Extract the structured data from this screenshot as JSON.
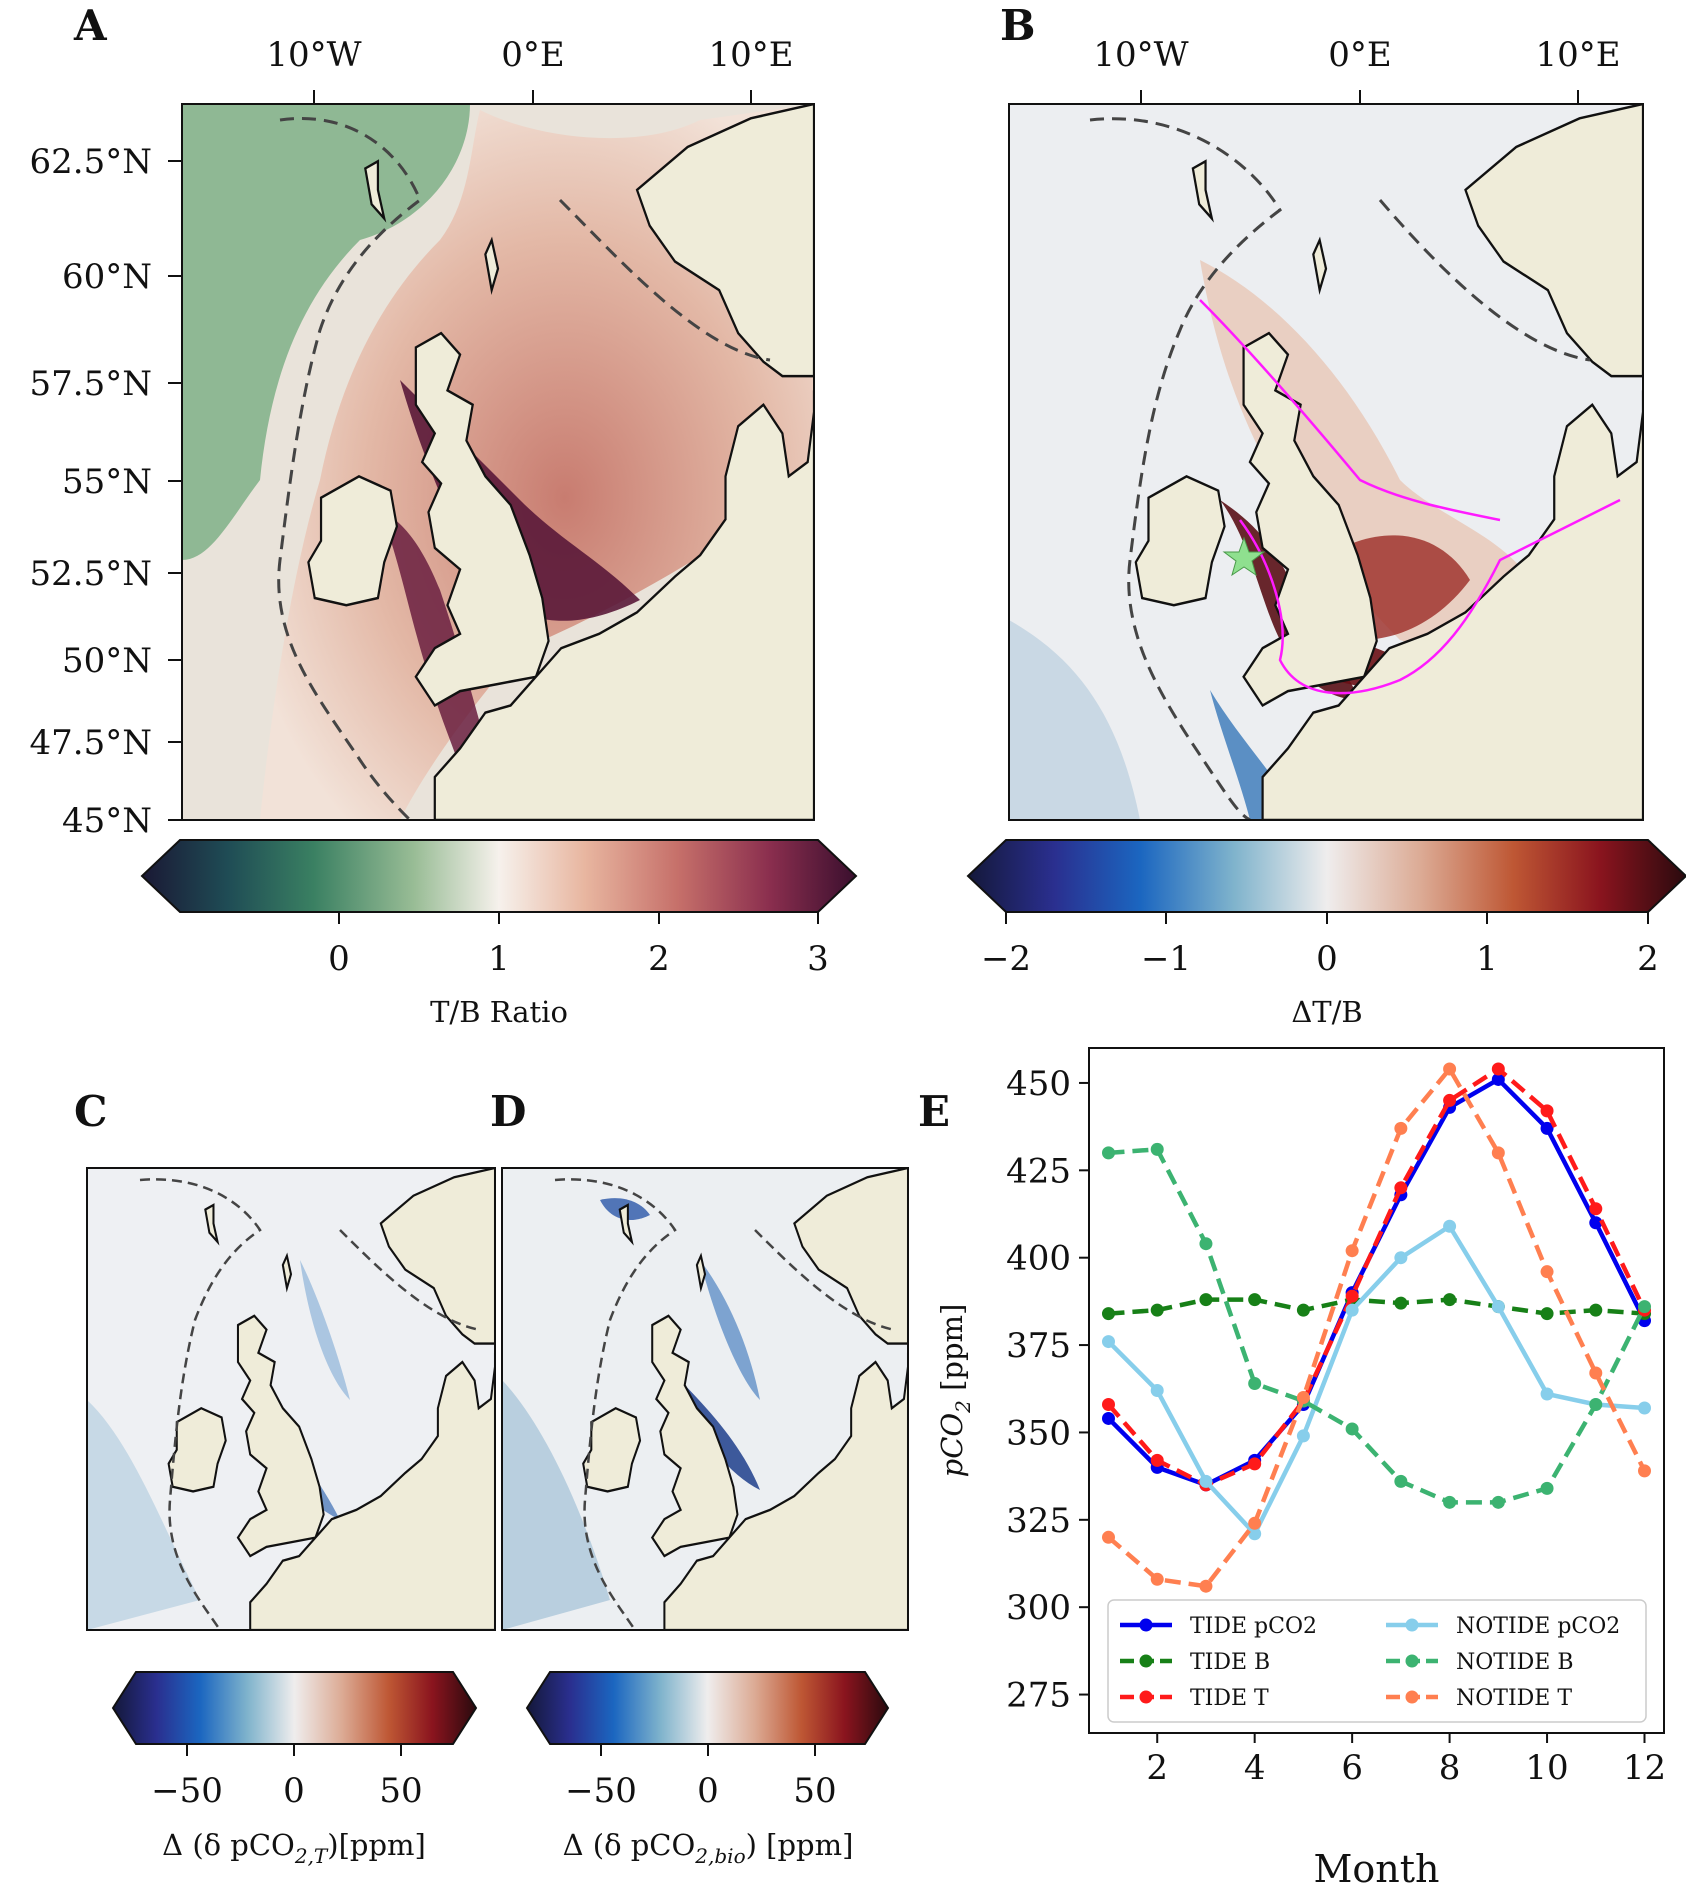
{
  "panels": {
    "A": {
      "letter": "A",
      "lon_ticks": [
        "10°W",
        "0°E",
        "10°E"
      ],
      "lat_ticks": [
        "62.5°N",
        "60°N",
        "57.5°N",
        "55°N",
        "52.5°N",
        "50°N",
        "47.5°N",
        "45°N"
      ],
      "colorbar_ticks": [
        "0",
        "1",
        "2",
        "3"
      ],
      "colorbar_label": "T/B Ratio"
    },
    "B": {
      "letter": "B",
      "lon_ticks": [
        "10°W",
        "0°E",
        "10°E"
      ],
      "colorbar_ticks": [
        "−2",
        "−1",
        "0",
        "1",
        "2"
      ],
      "colorbar_label": "ΔT/B"
    },
    "C": {
      "letter": "C",
      "colorbar_ticks": [
        "−50",
        "0",
        "50"
      ],
      "colorbar_label": "Δ (δ pCO",
      "colorbar_label_sub": "2,T",
      "colorbar_label_tail": ")[ppm]"
    },
    "D": {
      "letter": "D",
      "colorbar_ticks": [
        "−50",
        "0",
        "50"
      ],
      "colorbar_label": "Δ (δ pCO",
      "colorbar_label_sub": "2,bio",
      "colorbar_label_tail": ") [ppm]"
    },
    "E": {
      "letter": "E"
    }
  },
  "chart_data": [
    {
      "type": "heatmap",
      "panel": "A",
      "title": "",
      "colorbar_label": "T/B Ratio",
      "color_range": [
        -1,
        3
      ],
      "colorbar_ticks": [
        0,
        1,
        2,
        3
      ],
      "lon_range": [
        -16,
        13
      ],
      "lat_range": [
        45,
        64
      ],
      "lon_ticks": [
        -10,
        0,
        10
      ],
      "lat_ticks": [
        62.5,
        60,
        57.5,
        55,
        52.5,
        50,
        47.5,
        45
      ]
    },
    {
      "type": "heatmap",
      "panel": "B",
      "title": "",
      "colorbar_label": "ΔT/B",
      "color_range": [
        -2,
        2
      ],
      "colorbar_ticks": [
        -2,
        -1,
        0,
        1,
        2
      ],
      "lon_range": [
        -16,
        13
      ],
      "lat_range": [
        45,
        64
      ],
      "lon_ticks": [
        -10,
        0,
        10
      ],
      "marker": "green star near 5°W, 53°N"
    },
    {
      "type": "heatmap",
      "panel": "C",
      "colorbar_label": "Δ (δ pCO2,T)[ppm]",
      "color_range": [
        -80,
        80
      ],
      "colorbar_ticks": [
        -50,
        0,
        50
      ]
    },
    {
      "type": "heatmap",
      "panel": "D",
      "colorbar_label": "Δ (δ pCO2,bio) [ppm]",
      "color_range": [
        -80,
        80
      ],
      "colorbar_ticks": [
        -50,
        0,
        50
      ]
    },
    {
      "type": "line",
      "panel": "E",
      "title": "",
      "xlabel": "Month",
      "ylabel": "pCO",
      "ylabel_sub": "2",
      "ylabel_tail": " [ppm]",
      "xlim": [
        0.6,
        12.4
      ],
      "ylim": [
        264,
        460
      ],
      "x_ticks": [
        2,
        4,
        6,
        8,
        10,
        12
      ],
      "y_ticks": [
        275,
        300,
        325,
        350,
        375,
        400,
        425,
        450
      ],
      "x": [
        1,
        2,
        3,
        4,
        5,
        6,
        7,
        8,
        9,
        10,
        11,
        12
      ],
      "legend_position": "lower-center",
      "series": [
        {
          "name": "TIDE pCO2",
          "color": "#0000ee",
          "dash": "solid",
          "values": [
            354,
            340,
            335,
            342,
            358,
            390,
            418,
            443,
            451,
            437,
            410,
            382
          ]
        },
        {
          "name": "TIDE B",
          "color": "#178017",
          "dash": "dashed",
          "values": [
            384,
            385,
            388,
            388,
            385,
            388,
            387,
            388,
            386,
            384,
            385,
            384
          ]
        },
        {
          "name": "TIDE T",
          "color": "#ff1a1a",
          "dash": "dashed",
          "values": [
            358,
            342,
            335,
            341,
            359,
            389,
            420,
            445,
            454,
            442,
            414,
            385
          ]
        },
        {
          "name": "NOTIDE pCO2",
          "color": "#87ceeb",
          "dash": "solid",
          "values": [
            376,
            362,
            336,
            321,
            349,
            385,
            400,
            409,
            386,
            361,
            358,
            357
          ]
        },
        {
          "name": "NOTIDE B",
          "color": "#3cb371",
          "dash": "dashed",
          "values": [
            430,
            431,
            404,
            364,
            359,
            351,
            336,
            330,
            330,
            334,
            358,
            386
          ]
        },
        {
          "name": "NOTIDE T",
          "color": "#ff7f50",
          "dash": "dashed",
          "values": [
            320,
            308,
            306,
            324,
            360,
            402,
            437,
            454,
            430,
            396,
            367,
            339
          ]
        }
      ]
    }
  ]
}
